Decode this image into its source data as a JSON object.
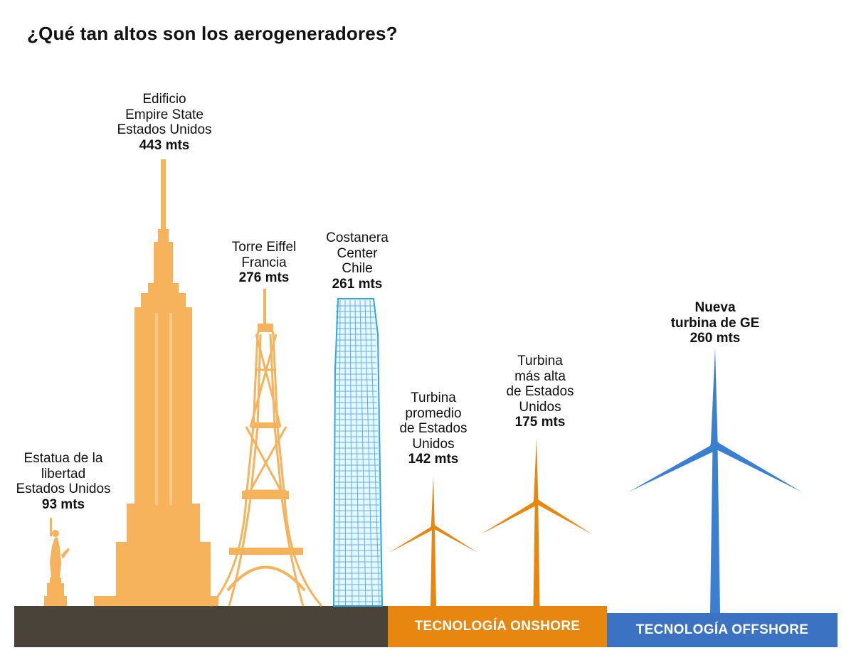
{
  "title": "¿Qué tan altos son los aerogeneradores?",
  "structures": {
    "statue": {
      "lines": [
        "Estatua de la",
        "libertad",
        "Estados Unidos"
      ],
      "value": "93 mts"
    },
    "empire": {
      "lines": [
        "Edificio",
        "Empire State",
        "Estados Unidos"
      ],
      "value": "443 mts"
    },
    "eiffel": {
      "lines": [
        "Torre Eiffel",
        "Francia"
      ],
      "value": "276 mts"
    },
    "costanera": {
      "lines": [
        "Costanera",
        "Center",
        "Chile"
      ],
      "value": "261 mts"
    },
    "turbine_avg": {
      "lines": [
        "Turbina",
        "promedio",
        "de Estados",
        "Unidos"
      ],
      "value": "142 mts"
    },
    "turbine_tall": {
      "lines": [
        "Turbina",
        "más alta",
        "de Estados",
        "Unidos"
      ],
      "value": "175 mts"
    },
    "turbine_ge": {
      "lines": [
        "Nueva",
        "turbina de GE"
      ],
      "value": "260 mts"
    }
  },
  "bands": {
    "onshore": "TECNOLOGÍA ONSHORE",
    "offshore": "TECNOLOGÍA OFFSHORE"
  },
  "colors": {
    "orange_building": "#f7b25c",
    "orange_turbine": "#e8870f",
    "blue_turbine": "#3b7fd1",
    "blue_tower": "#2fa6e6",
    "ground_dark": "#4a433a",
    "band_onshore": "#e8870f",
    "band_offshore": "#3b72c2"
  }
}
